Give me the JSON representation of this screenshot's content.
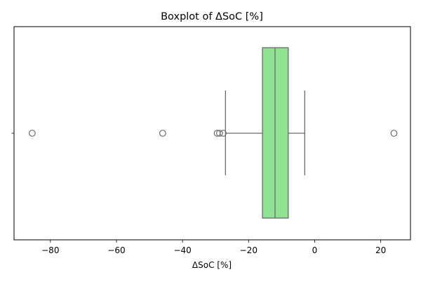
{
  "chart_data": {
    "type": "boxplot",
    "title": "Boxplot of ΔSoC [%]",
    "xlabel": "ΔSoC [%]",
    "ylabel": "",
    "orientation": "horizontal",
    "xlim": [
      -91,
      29
    ],
    "xticks": [
      -80,
      -60,
      -40,
      -20,
      0,
      20
    ],
    "xtick_labels": [
      "−80",
      "−60",
      "−40",
      "−20",
      "0",
      "20"
    ],
    "grid": false,
    "box": {
      "whisker_low": -27,
      "q1": -15.8,
      "median": -12,
      "q3": -8,
      "whisker_high": -3,
      "outliers": [
        -85.5,
        -46,
        -29.5,
        -28.8,
        -27.7,
        24
      ],
      "color": "#90e390",
      "edge_color": "#6b6b6b"
    }
  }
}
